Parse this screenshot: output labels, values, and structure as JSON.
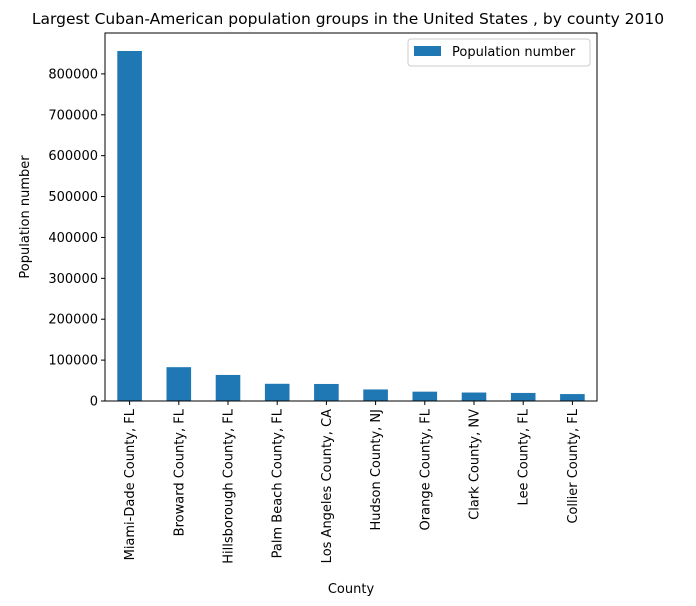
{
  "chart_data": {
    "type": "bar",
    "title": "Largest Cuban-American population groups in the United States , by county 2010",
    "xlabel": "County",
    "ylabel": "Population number",
    "categories": [
      "Miami-Dade County, FL",
      "Broward County, FL",
      "Hillsborough County, FL",
      "Palm Beach County, FL",
      "Los Angeles County, CA",
      "Hudson County, NJ",
      "Orange County, FL",
      "Clark County, NV",
      "Lee County, FL",
      "Collier County, FL"
    ],
    "series": [
      {
        "name": "Population number",
        "color": "#1f77b4",
        "values": [
          856007,
          82742,
          63726,
          42077,
          41660,
          28215,
          22838,
          20731,
          19727,
          16958
        ]
      }
    ],
    "ylim": [
      0,
      900000
    ],
    "yticks": [
      0,
      100000,
      200000,
      300000,
      400000,
      500000,
      600000,
      700000,
      800000
    ],
    "ytick_labels": [
      "0",
      "100000",
      "200000",
      "300000",
      "400000",
      "500000",
      "600000",
      "700000",
      "800000"
    ],
    "legend_position": "top-right",
    "grid": false
  }
}
